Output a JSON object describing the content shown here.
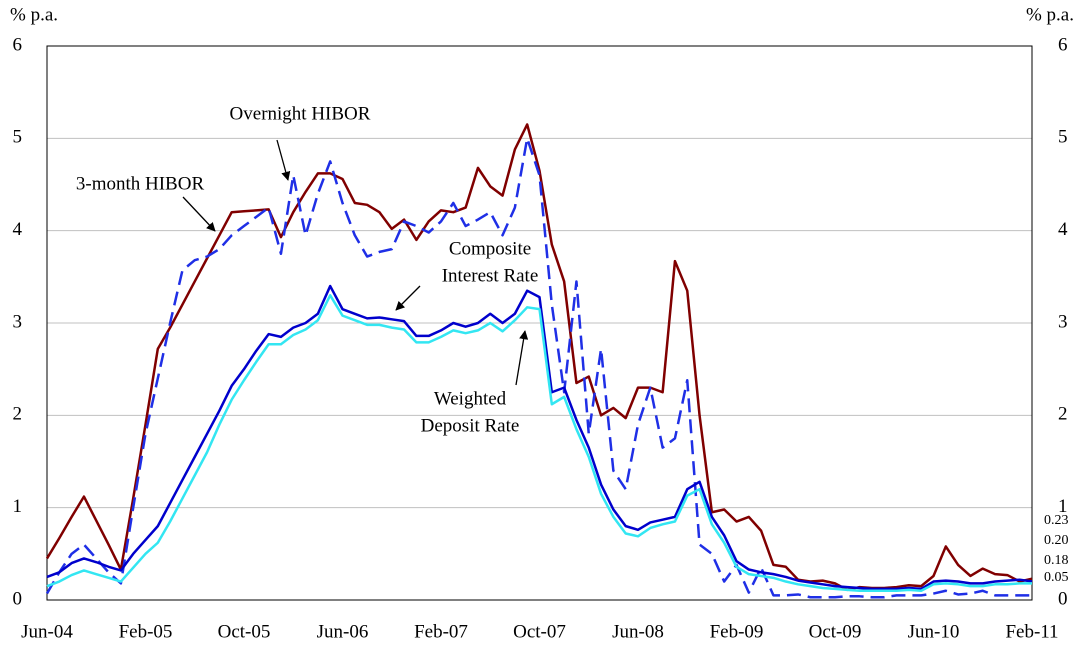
{
  "chart_data": {
    "type": "line",
    "ylabel": "% p.a.",
    "categories": [
      "Jun-04",
      null,
      null,
      null,
      null,
      null,
      null,
      null,
      "Feb-05",
      null,
      null,
      null,
      null,
      null,
      null,
      null,
      "Oct-05",
      null,
      null,
      null,
      null,
      null,
      null,
      null,
      "Jun-06",
      null,
      null,
      null,
      null,
      null,
      null,
      null,
      "Feb-07",
      null,
      null,
      null,
      null,
      null,
      null,
      null,
      "Oct-07",
      null,
      null,
      null,
      null,
      null,
      null,
      null,
      "Jun-08",
      null,
      null,
      null,
      null,
      null,
      null,
      null,
      "Feb-09",
      null,
      null,
      null,
      null,
      null,
      null,
      null,
      "Oct-09",
      null,
      null,
      null,
      null,
      null,
      null,
      null,
      "Jun-10",
      null,
      null,
      null,
      null,
      null,
      null,
      null,
      "Feb-11"
    ],
    "ylim": [
      0,
      6
    ],
    "yticks": [
      0,
      1,
      2,
      3,
      4,
      5,
      6
    ],
    "y2lim": [
      0,
      6
    ],
    "y2ticks": [
      0,
      1,
      2,
      3,
      4,
      5,
      6
    ],
    "grid": true,
    "series": [
      {
        "label_lines": [
          "3-month HIBOR"
        ],
        "color": "#800000",
        "dashed": false,
        "end_label": "0.23",
        "values": [
          0.45,
          0.67,
          0.9,
          1.12,
          0.86,
          0.6,
          0.33,
          1.1,
          1.9,
          2.72,
          2.95,
          3.2,
          3.45,
          3.7,
          3.95,
          4.2,
          4.21,
          4.22,
          4.23,
          3.93,
          4.2,
          4.42,
          4.62,
          4.62,
          4.56,
          4.3,
          4.28,
          4.2,
          4.02,
          4.12,
          3.9,
          4.1,
          4.22,
          4.2,
          4.25,
          4.68,
          4.48,
          4.38,
          4.88,
          5.15,
          4.65,
          3.85,
          3.45,
          2.35,
          2.42,
          2.0,
          2.08,
          1.97,
          2.3,
          2.3,
          2.25,
          3.67,
          3.35,
          2.0,
          0.95,
          0.98,
          0.85,
          0.9,
          0.75,
          0.38,
          0.36,
          0.22,
          0.2,
          0.21,
          0.18,
          0.11,
          0.14,
          0.13,
          0.13,
          0.14,
          0.16,
          0.15,
          0.26,
          0.58,
          0.38,
          0.26,
          0.34,
          0.28,
          0.27,
          0.2,
          0.23
        ]
      },
      {
        "label_lines": [
          "Overnight HIBOR"
        ],
        "color": "#1f2fe6",
        "dashed": true,
        "end_label": "0.05",
        "values": [
          0.07,
          0.3,
          0.5,
          0.6,
          0.45,
          0.3,
          0.18,
          1.0,
          1.8,
          2.4,
          3.0,
          3.57,
          3.68,
          3.72,
          3.8,
          3.95,
          4.05,
          4.15,
          4.25,
          3.75,
          4.6,
          3.95,
          4.4,
          4.75,
          4.3,
          3.95,
          3.72,
          3.77,
          3.8,
          4.1,
          4.05,
          3.98,
          4.1,
          4.3,
          4.05,
          4.12,
          4.2,
          3.95,
          4.25,
          5.0,
          4.6,
          3.2,
          2.25,
          3.45,
          1.8,
          2.72,
          1.4,
          1.2,
          1.9,
          2.3,
          1.65,
          1.75,
          2.38,
          0.6,
          0.5,
          0.2,
          0.38,
          0.08,
          0.35,
          0.05,
          0.05,
          0.06,
          0.03,
          0.03,
          0.03,
          0.04,
          0.04,
          0.03,
          0.03,
          0.05,
          0.05,
          0.05,
          0.07,
          0.1,
          0.06,
          0.07,
          0.1,
          0.05,
          0.05,
          0.05,
          0.05
        ]
      },
      {
        "label_lines": [
          "Composite",
          "Interest Rate"
        ],
        "color": "#0000cc",
        "dashed": false,
        "end_label": "0.20",
        "values": [
          0.25,
          0.3,
          0.4,
          0.45,
          0.41,
          0.36,
          0.32,
          0.5,
          0.65,
          0.8,
          1.05,
          1.3,
          1.55,
          1.8,
          2.05,
          2.32,
          2.5,
          2.7,
          2.88,
          2.85,
          2.95,
          3.0,
          3.1,
          3.4,
          3.15,
          3.1,
          3.05,
          3.06,
          3.04,
          3.02,
          2.86,
          2.86,
          2.92,
          3.0,
          2.96,
          3.0,
          3.1,
          3.0,
          3.1,
          3.35,
          3.28,
          2.25,
          2.3,
          1.95,
          1.65,
          1.25,
          0.98,
          0.8,
          0.76,
          0.84,
          0.87,
          0.9,
          1.2,
          1.28,
          0.9,
          0.7,
          0.42,
          0.33,
          0.3,
          0.28,
          0.25,
          0.21,
          0.19,
          0.17,
          0.15,
          0.14,
          0.13,
          0.12,
          0.12,
          0.12,
          0.13,
          0.12,
          0.2,
          0.21,
          0.2,
          0.18,
          0.18,
          0.2,
          0.21,
          0.22,
          0.2
        ]
      },
      {
        "label_lines": [
          "Weighted",
          "Deposit Rate"
        ],
        "color": "#33e6f2",
        "dashed": false,
        "end_label": "0.18",
        "values": [
          0.15,
          0.2,
          0.27,
          0.32,
          0.28,
          0.24,
          0.2,
          0.35,
          0.5,
          0.62,
          0.85,
          1.1,
          1.35,
          1.6,
          1.9,
          2.17,
          2.38,
          2.58,
          2.77,
          2.77,
          2.87,
          2.93,
          3.03,
          3.3,
          3.08,
          3.03,
          2.98,
          2.98,
          2.95,
          2.93,
          2.79,
          2.79,
          2.85,
          2.92,
          2.89,
          2.92,
          3.0,
          2.91,
          3.03,
          3.17,
          3.15,
          2.12,
          2.2,
          1.85,
          1.55,
          1.15,
          0.9,
          0.72,
          0.69,
          0.78,
          0.82,
          0.85,
          1.13,
          1.2,
          0.82,
          0.62,
          0.36,
          0.28,
          0.26,
          0.24,
          0.2,
          0.17,
          0.15,
          0.13,
          0.12,
          0.11,
          0.1,
          0.1,
          0.1,
          0.1,
          0.11,
          0.1,
          0.17,
          0.18,
          0.17,
          0.15,
          0.15,
          0.17,
          0.17,
          0.18,
          0.18
        ]
      }
    ]
  }
}
